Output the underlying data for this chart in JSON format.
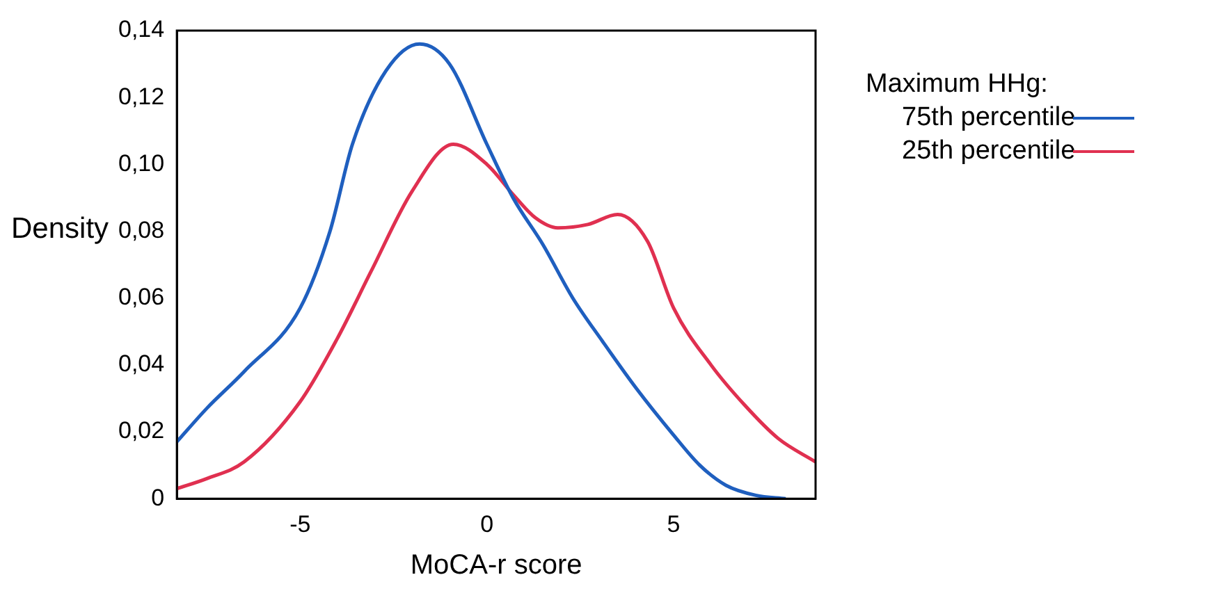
{
  "chart_data": {
    "type": "line",
    "xlabel": "MoCA-r score",
    "ylabel": "Density",
    "legend_title": "Maximum HHg:",
    "legend": "right",
    "grid": false,
    "marker": "none",
    "line_style": "solid",
    "xlim": [
      -8.3,
      8.8
    ],
    "xticks": [
      -5,
      0,
      5
    ],
    "ylim": [
      0,
      0.14
    ],
    "yticks": [
      {
        "value": 0,
        "label": "0"
      },
      {
        "value": 0.02,
        "label": "0,02"
      },
      {
        "value": 0.04,
        "label": "0,04"
      },
      {
        "value": 0.06,
        "label": "0,06"
      },
      {
        "value": 0.08,
        "label": "0,08"
      },
      {
        "value": 0.1,
        "label": "0,10"
      },
      {
        "value": 0.12,
        "label": "0,12"
      },
      {
        "value": 0.14,
        "label": "0,14"
      }
    ],
    "series": [
      {
        "name": "75th percentile",
        "color": "#1f5fbf",
        "x": [
          -8.3,
          -7.5,
          -6.5,
          -5,
          -4.2,
          -3.6,
          -2.7,
          -1.8,
          -1,
          0,
          0.7,
          1.5,
          2.3,
          3.1,
          4,
          5,
          5.7,
          6.4,
          7.2,
          8
        ],
        "values": [
          0.017,
          0.027,
          0.038,
          0.057,
          0.08,
          0.106,
          0.128,
          0.136,
          0.13,
          0.106,
          0.09,
          0.076,
          0.06,
          0.047,
          0.033,
          0.019,
          0.01,
          0.004,
          0.001,
          0
        ]
      },
      {
        "name": "25th percentile",
        "color": "#e03050",
        "x": [
          -8.3,
          -7.5,
          -6.5,
          -5,
          -4,
          -3.1,
          -2,
          -0.9,
          0,
          0.7,
          1.3,
          1.9,
          2.7,
          3.5,
          4.3,
          5,
          6,
          6.9,
          7.8,
          8.8
        ],
        "values": [
          0.003,
          0.006,
          0.011,
          0.029,
          0.048,
          0.068,
          0.092,
          0.106,
          0.1,
          0.091,
          0.084,
          0.081,
          0.082,
          0.085,
          0.077,
          0.057,
          0.04,
          0.028,
          0.018,
          0.011
        ]
      }
    ]
  }
}
